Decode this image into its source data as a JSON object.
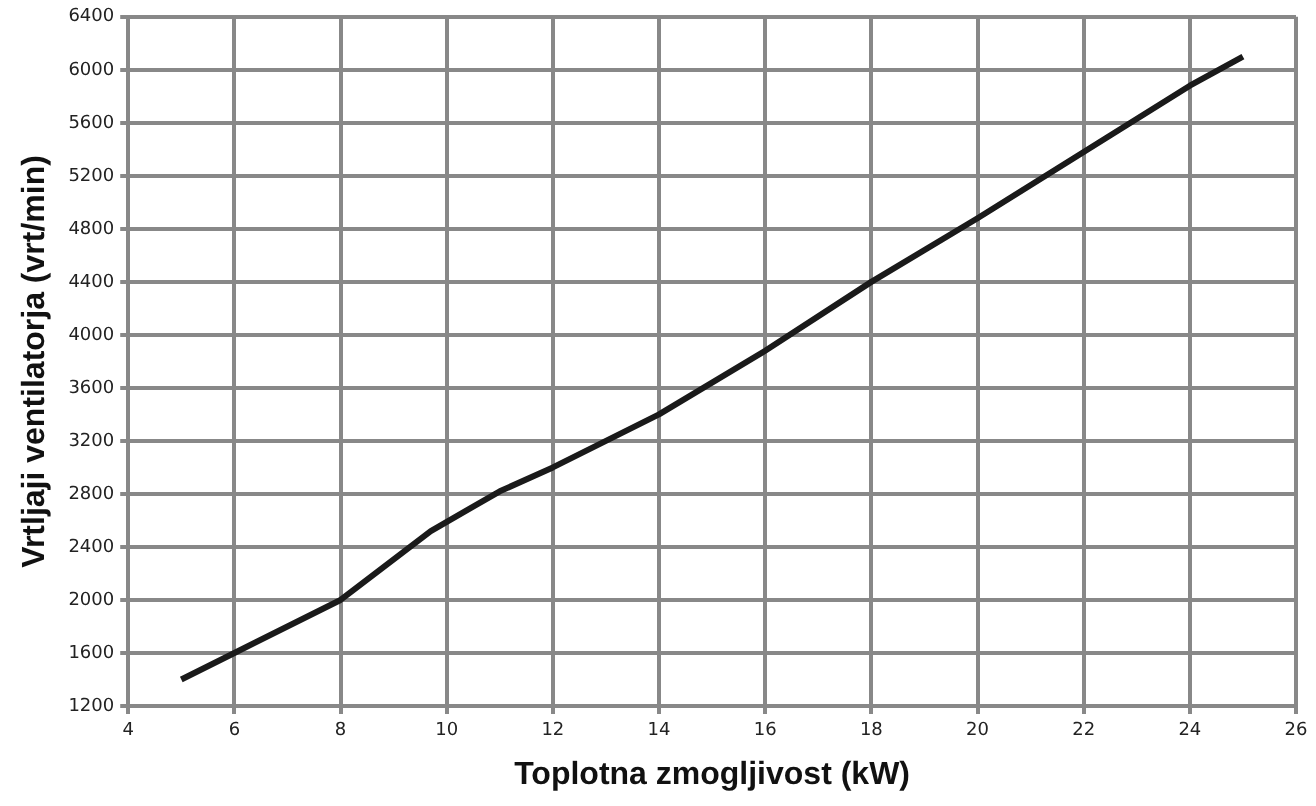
{
  "chart_data": {
    "type": "line",
    "xlabel": "Toplotna zmogljivost (kW)",
    "ylabel": "Vrtljaji ventilatorja (vrt/min)",
    "x": [
      5,
      6,
      8,
      9.7,
      11,
      12,
      14,
      16,
      18,
      20,
      22,
      24,
      25
    ],
    "series": [
      {
        "color": "#1a1a1a",
        "values": [
          1400,
          1600,
          2000,
          2520,
          2820,
          3000,
          3400,
          3880,
          4400,
          4880,
          5380,
          5880,
          6100
        ]
      }
    ],
    "xlim": [
      4,
      26
    ],
    "xticks": [
      4,
      6,
      8,
      10,
      12,
      14,
      16,
      18,
      20,
      22,
      24,
      26
    ],
    "ylim": [
      1200,
      6400
    ],
    "yticks": [
      1200,
      1600,
      2000,
      2400,
      2800,
      3200,
      3600,
      4000,
      4400,
      4800,
      5200,
      5600,
      6000,
      6400
    ],
    "grid": true,
    "legend": false,
    "marker": "none",
    "line_style": "solid"
  }
}
